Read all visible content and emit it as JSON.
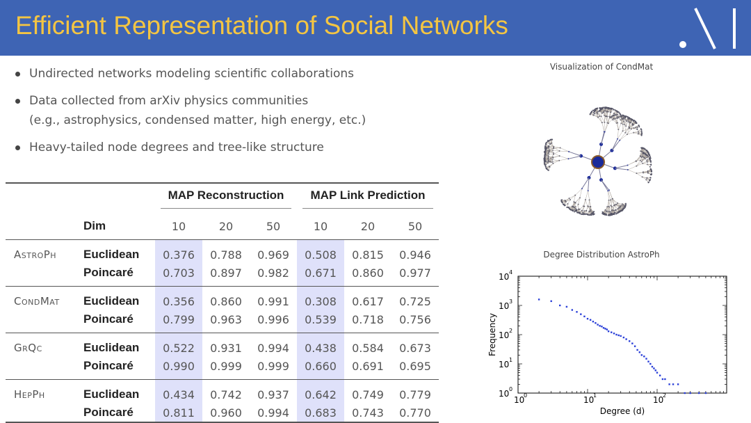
{
  "slide": {
    "title": "Efficient Representation of Social Networks",
    "bullets": [
      "Undirected networks modeling scientific collaborations",
      "Data collected from arXiv physics communities",
      "(e.g., astrophysics, condensed matter, high energy, etc.)",
      "Heavy-tailed node degrees and tree-like structure"
    ]
  },
  "table": {
    "group_headers": [
      "MAP Reconstruction",
      "MAP Link Prediction"
    ],
    "dim_label": "Dim",
    "dims": [
      "10",
      "20",
      "50",
      "10",
      "20",
      "50"
    ],
    "rows": [
      {
        "dataset": "AstroPh",
        "model": "Euclidean",
        "values": [
          "0.376",
          "0.788",
          "0.969",
          "0.508",
          "0.815",
          "0.946"
        ]
      },
      {
        "dataset": "",
        "model": "Poincaré",
        "values": [
          "0.703",
          "0.897",
          "0.982",
          "0.671",
          "0.860",
          "0.977"
        ]
      },
      {
        "dataset": "CondMat",
        "model": "Euclidean",
        "values": [
          "0.356",
          "0.860",
          "0.991",
          "0.308",
          "0.617",
          "0.725"
        ]
      },
      {
        "dataset": "",
        "model": "Poincaré",
        "values": [
          "0.799",
          "0.963",
          "0.996",
          "0.539",
          "0.718",
          "0.756"
        ]
      },
      {
        "dataset": "GrQc",
        "model": "Euclidean",
        "values": [
          "0.522",
          "0.931",
          "0.994",
          "0.438",
          "0.584",
          "0.673"
        ]
      },
      {
        "dataset": "",
        "model": "Poincaré",
        "values": [
          "0.990",
          "0.999",
          "0.999",
          "0.660",
          "0.691",
          "0.695"
        ]
      },
      {
        "dataset": "HepPh",
        "model": "Euclidean",
        "values": [
          "0.434",
          "0.742",
          "0.937",
          "0.642",
          "0.749",
          "0.779"
        ]
      },
      {
        "dataset": "",
        "model": "Poincaré",
        "values": [
          "0.811",
          "0.960",
          "0.994",
          "0.683",
          "0.743",
          "0.770"
        ]
      }
    ]
  },
  "visualization": {
    "title": "Visualization of CondMat"
  },
  "chart_data": {
    "type": "scatter",
    "title": "Degree Distribution AstroPh",
    "xlabel": "Degree (d)",
    "ylabel": "Frequency",
    "xscale": "log",
    "yscale": "log",
    "xlim": [
      1,
      1000
    ],
    "ylim": [
      1,
      10000
    ],
    "xtick_labels": [
      "10",
      "10",
      "10"
    ],
    "xtick_exponents": [
      "0",
      "1",
      "2"
    ],
    "ytick_labels": [
      "10",
      "10",
      "10",
      "10",
      "10"
    ],
    "ytick_exponents": [
      "0",
      "1",
      "2",
      "3",
      "4"
    ],
    "x": [
      2,
      3,
      4,
      5,
      6,
      7,
      8,
      9,
      10,
      11,
      12,
      13,
      14,
      15,
      16,
      17,
      18,
      19,
      20,
      22,
      24,
      26,
      28,
      30,
      33,
      36,
      40,
      44,
      48,
      52,
      56,
      60,
      65,
      70,
      75,
      80,
      85,
      90,
      95,
      100,
      110,
      120,
      130,
      150,
      170,
      200,
      250,
      300,
      400,
      500
    ],
    "y": [
      1600,
      1400,
      1000,
      900,
      700,
      600,
      500,
      420,
      350,
      320,
      280,
      250,
      220,
      200,
      190,
      170,
      160,
      150,
      130,
      120,
      110,
      100,
      95,
      90,
      80,
      70,
      60,
      50,
      40,
      30,
      25,
      20,
      18,
      15,
      12,
      10,
      8,
      7,
      6,
      5,
      4,
      3,
      3,
      2,
      2,
      2,
      1,
      1,
      1,
      1
    ],
    "color": "#2a3fd8"
  },
  "colors": {
    "header": "#3e64b4",
    "title": "#f4c542",
    "highlight": "#dfe1fa"
  }
}
